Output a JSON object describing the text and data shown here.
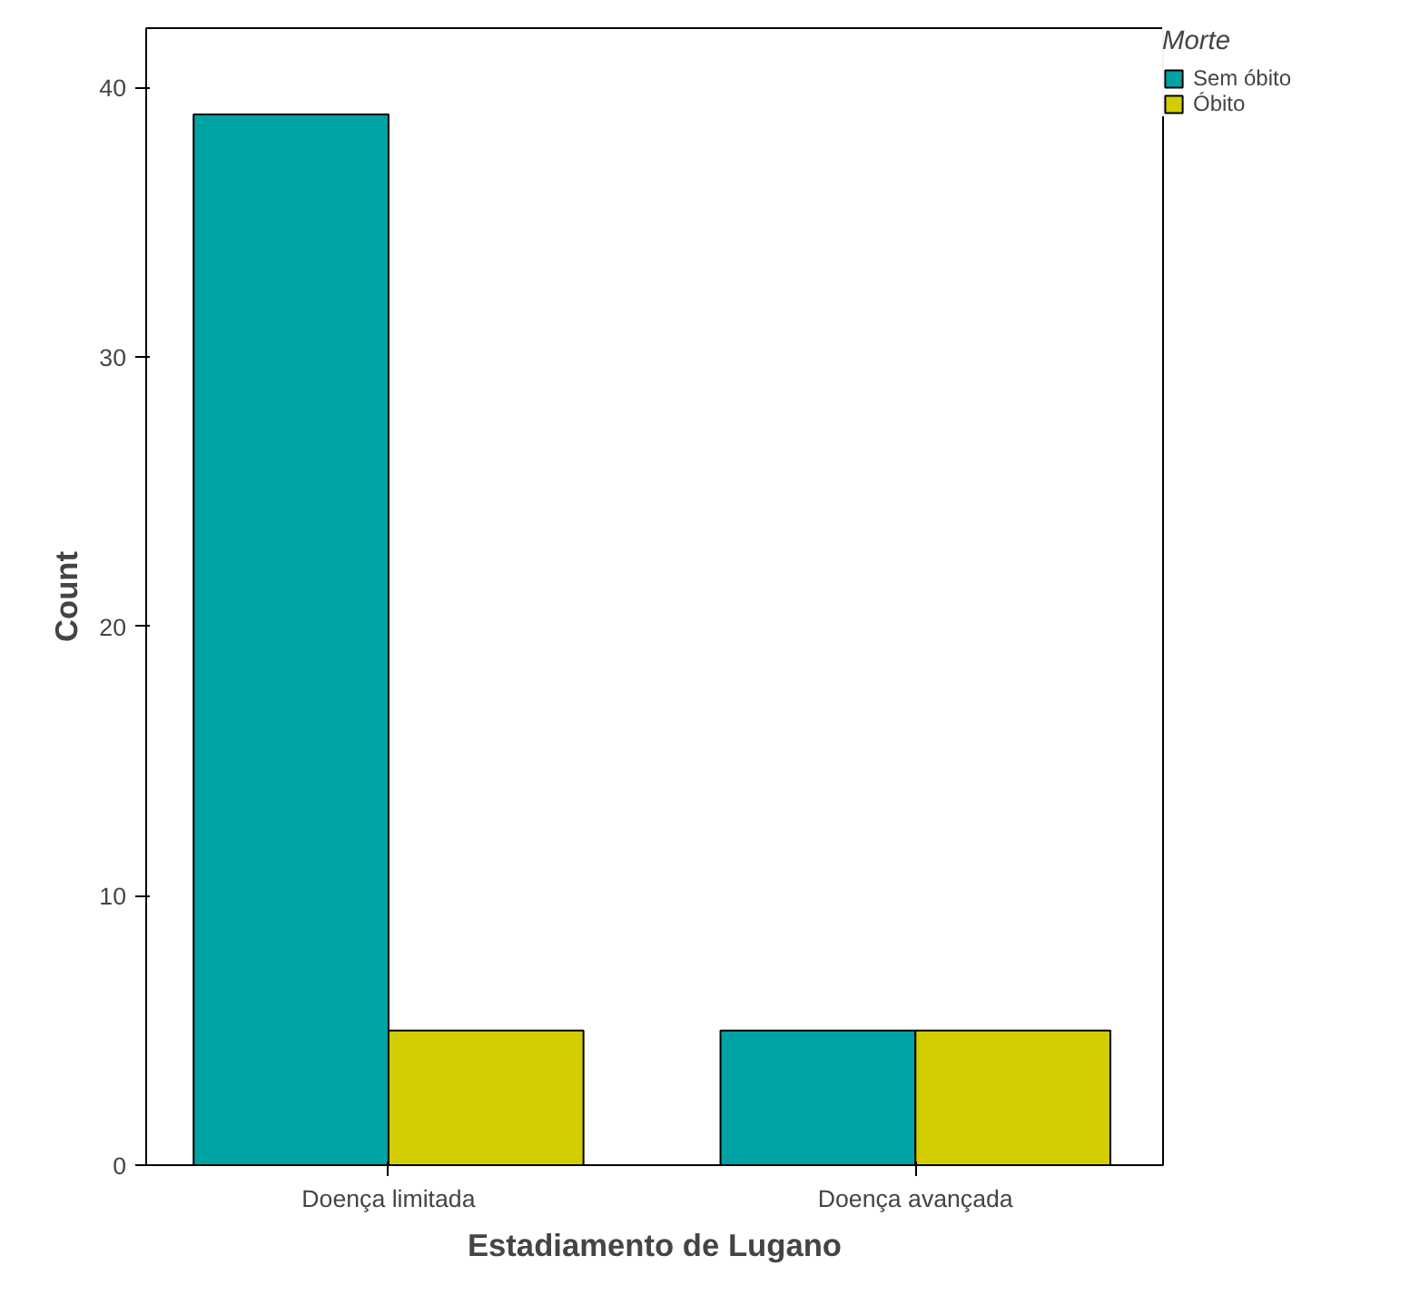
{
  "chart_data": {
    "type": "bar",
    "xlabel": "Estadiamento de Lugano",
    "ylabel": "Count",
    "legend_title": "Morte",
    "categories": [
      "Doença limitada",
      "Doença avançada"
    ],
    "series": [
      {
        "name": "Sem óbito",
        "color": "#00a3a3",
        "values": [
          39,
          5
        ]
      },
      {
        "name": "Óbito",
        "color": "#d2cd00",
        "values": [
          5,
          5
        ]
      }
    ],
    "ylim": [
      0,
      42.2
    ],
    "yticks": [
      0,
      10,
      20,
      30,
      40
    ],
    "grid": false,
    "legend": "right"
  }
}
